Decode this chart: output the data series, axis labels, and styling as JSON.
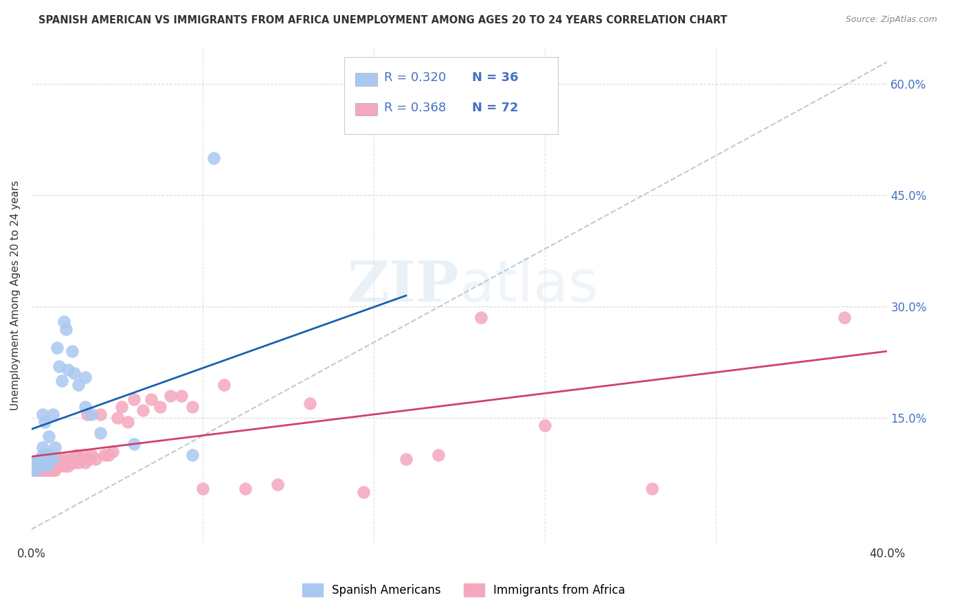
{
  "title": "SPANISH AMERICAN VS IMMIGRANTS FROM AFRICA UNEMPLOYMENT AMONG AGES 20 TO 24 YEARS CORRELATION CHART",
  "source": "Source: ZipAtlas.com",
  "ylabel": "Unemployment Among Ages 20 to 24 years",
  "xlim": [
    0.0,
    0.4
  ],
  "ylim": [
    -0.02,
    0.65
  ],
  "blue_color": "#a8c8f0",
  "pink_color": "#f4a8be",
  "blue_line_color": "#1a5fb0",
  "pink_line_color": "#d04070",
  "dashed_line_color": "#b8ccd8",
  "legend_label1": "Spanish Americans",
  "legend_label2": "Immigrants from Africa",
  "blue_scatter_x": [
    0.001,
    0.002,
    0.002,
    0.003,
    0.003,
    0.004,
    0.004,
    0.005,
    0.005,
    0.005,
    0.006,
    0.006,
    0.007,
    0.007,
    0.008,
    0.008,
    0.009,
    0.01,
    0.01,
    0.011,
    0.012,
    0.013,
    0.014,
    0.015,
    0.016,
    0.017,
    0.019,
    0.02,
    0.022,
    0.025,
    0.025,
    0.028,
    0.032,
    0.048,
    0.075,
    0.085
  ],
  "blue_scatter_y": [
    0.085,
    0.08,
    0.09,
    0.085,
    0.092,
    0.09,
    0.095,
    0.1,
    0.11,
    0.155,
    0.09,
    0.145,
    0.085,
    0.1,
    0.095,
    0.125,
    0.1,
    0.095,
    0.155,
    0.11,
    0.245,
    0.22,
    0.2,
    0.28,
    0.27,
    0.215,
    0.24,
    0.21,
    0.195,
    0.205,
    0.165,
    0.155,
    0.13,
    0.115,
    0.1,
    0.5
  ],
  "pink_scatter_x": [
    0.001,
    0.001,
    0.002,
    0.002,
    0.002,
    0.003,
    0.003,
    0.003,
    0.004,
    0.004,
    0.005,
    0.005,
    0.005,
    0.006,
    0.006,
    0.006,
    0.007,
    0.007,
    0.008,
    0.008,
    0.009,
    0.009,
    0.01,
    0.01,
    0.011,
    0.011,
    0.012,
    0.012,
    0.013,
    0.014,
    0.015,
    0.015,
    0.016,
    0.017,
    0.018,
    0.019,
    0.02,
    0.021,
    0.022,
    0.023,
    0.024,
    0.025,
    0.026,
    0.027,
    0.028,
    0.03,
    0.032,
    0.034,
    0.036,
    0.038,
    0.04,
    0.042,
    0.045,
    0.048,
    0.052,
    0.056,
    0.06,
    0.065,
    0.07,
    0.075,
    0.08,
    0.09,
    0.1,
    0.115,
    0.13,
    0.155,
    0.175,
    0.19,
    0.21,
    0.24,
    0.29,
    0.38
  ],
  "pink_scatter_y": [
    0.08,
    0.085,
    0.08,
    0.085,
    0.09,
    0.08,
    0.085,
    0.09,
    0.08,
    0.085,
    0.08,
    0.085,
    0.09,
    0.08,
    0.085,
    0.09,
    0.08,
    0.085,
    0.08,
    0.085,
    0.08,
    0.09,
    0.08,
    0.085,
    0.08,
    0.09,
    0.085,
    0.095,
    0.085,
    0.09,
    0.085,
    0.095,
    0.09,
    0.085,
    0.095,
    0.09,
    0.09,
    0.1,
    0.09,
    0.095,
    0.1,
    0.09,
    0.155,
    0.095,
    0.1,
    0.095,
    0.155,
    0.1,
    0.1,
    0.105,
    0.15,
    0.165,
    0.145,
    0.175,
    0.16,
    0.175,
    0.165,
    0.18,
    0.18,
    0.165,
    0.055,
    0.195,
    0.055,
    0.06,
    0.17,
    0.05,
    0.095,
    0.1,
    0.285,
    0.14,
    0.055,
    0.285
  ],
  "blue_line_x": [
    0.0,
    0.175
  ],
  "blue_line_y": [
    0.135,
    0.315
  ],
  "pink_line_x": [
    0.0,
    0.4
  ],
  "pink_line_y": [
    0.098,
    0.24
  ],
  "diag_line_x": [
    0.0,
    0.4
  ],
  "diag_line_y": [
    0.0,
    0.63
  ],
  "watermark_zip": "ZIP",
  "watermark_atlas": "atlas",
  "background_color": "#ffffff",
  "grid_color": "#cccccc",
  "axis_label_color": "#4472c4",
  "text_color": "#333333"
}
